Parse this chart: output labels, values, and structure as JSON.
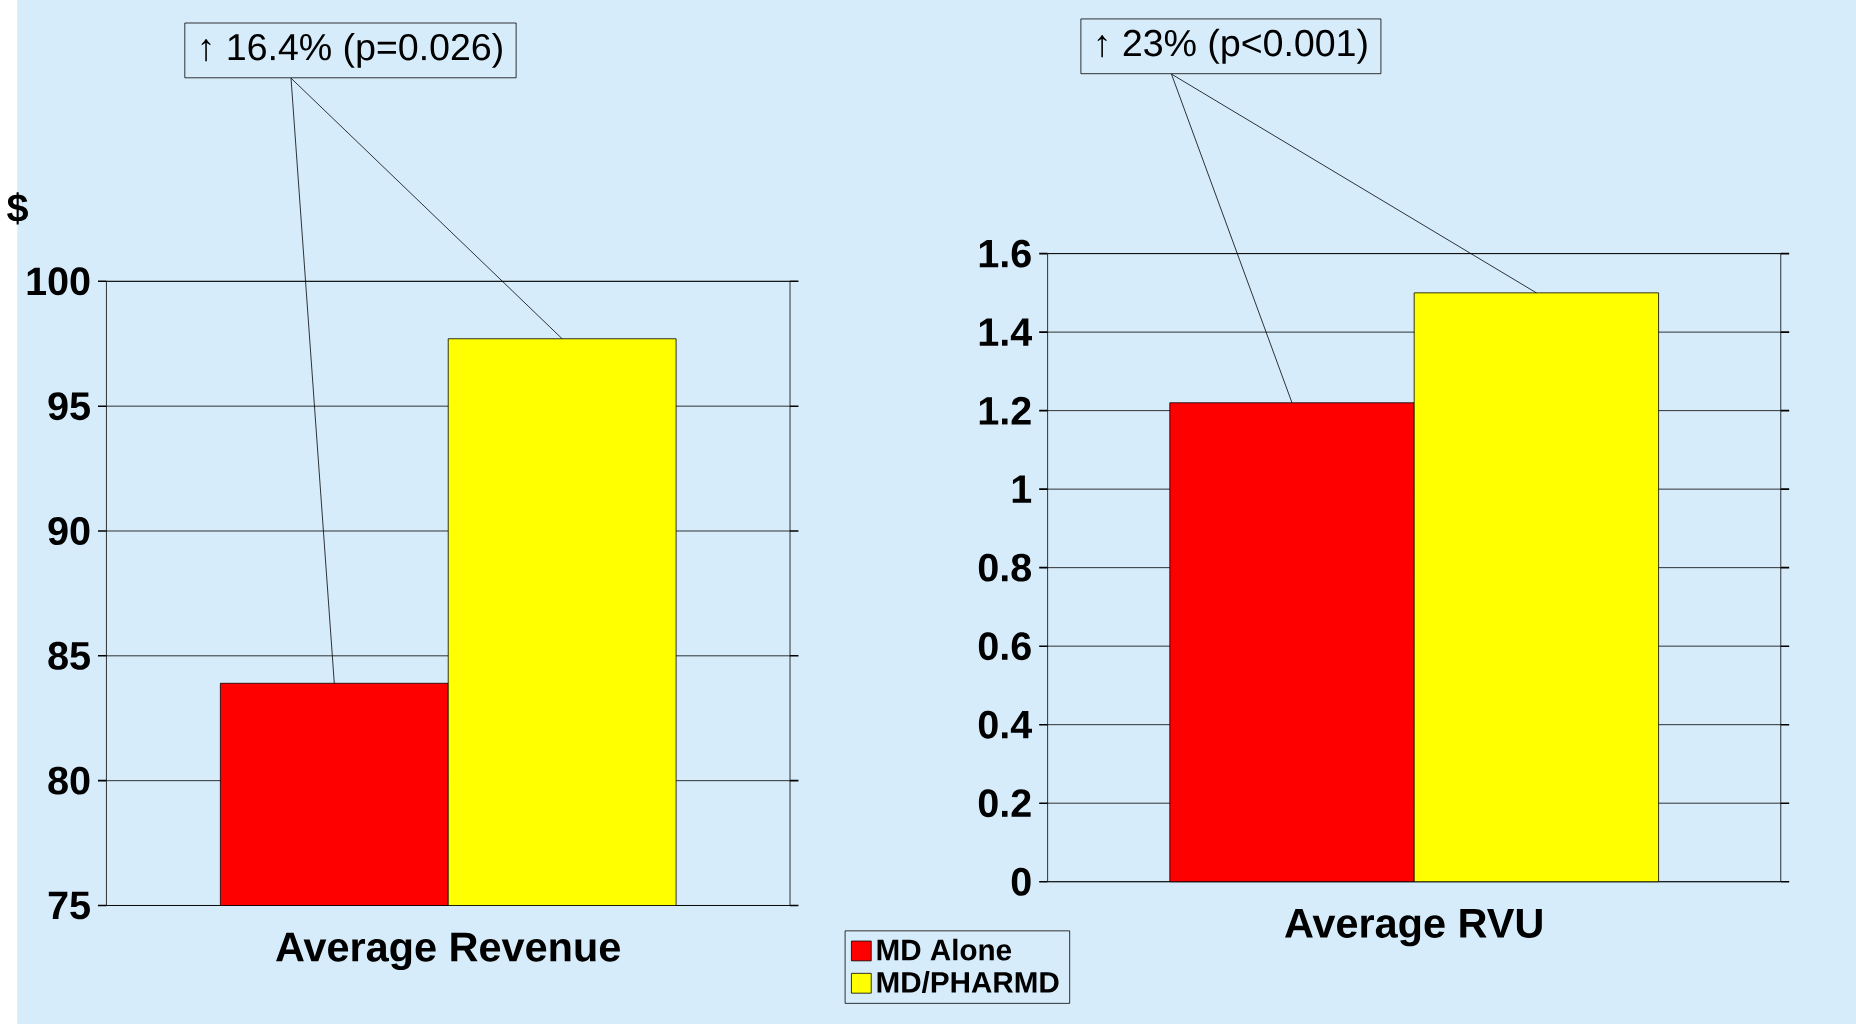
{
  "chart_data": [
    {
      "type": "bar",
      "categories": [
        "Average Revenue"
      ],
      "ylabel": "$",
      "series": [
        {
          "name": "MD Alone",
          "color": "#ff0000",
          "values": [
            83.9
          ]
        },
        {
          "name": "MD/PHARMD",
          "color": "#ffff00",
          "values": [
            97.7
          ]
        }
      ],
      "ylim": [
        75,
        100
      ],
      "yticks": [
        75,
        80,
        85,
        90,
        95,
        100
      ],
      "grid": "y",
      "legend": "bottom right",
      "annotations": [
        "↑ 16.4% (p=0.026)"
      ]
    },
    {
      "type": "bar",
      "categories": [
        "Average RVU"
      ],
      "series": [
        {
          "color": "#ff0000",
          "values": [
            1.22
          ]
        },
        {
          "color": "#ffff00",
          "values": [
            1.5
          ]
        }
      ],
      "ylim": [
        0,
        1.6
      ],
      "yticks": [
        0,
        0.2,
        0.4,
        0.6,
        0.8,
        1,
        1.2,
        1.4,
        1.6
      ],
      "grid": "y",
      "annotations": [
        "↑ 23% (p<0.001)"
      ]
    }
  ]
}
